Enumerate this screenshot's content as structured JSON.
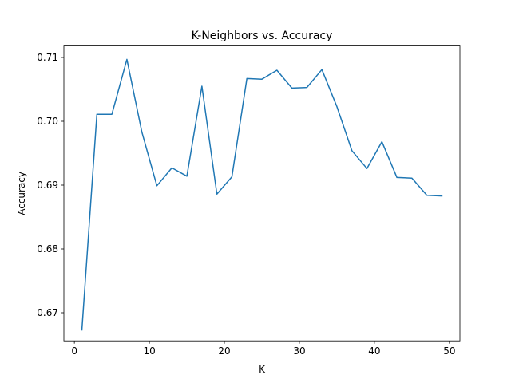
{
  "chart_data": {
    "type": "line",
    "title": "K-Neighbors vs. Accuracy",
    "xlabel": "K",
    "ylabel": "Accuracy",
    "xlim": [
      -1.4,
      51.4
    ],
    "ylim": [
      0.6656,
      0.7118
    ],
    "x_ticks": [
      0,
      10,
      20,
      30,
      40,
      50
    ],
    "x_tick_labels": [
      "0",
      "10",
      "20",
      "30",
      "40",
      "50"
    ],
    "y_ticks": [
      0.67,
      0.68,
      0.69,
      0.7,
      0.71
    ],
    "y_tick_labels": [
      "0.67",
      "0.68",
      "0.69",
      "0.70",
      "0.71"
    ],
    "grid": false,
    "legend": "none",
    "series": [
      {
        "color": "#1f77b4",
        "x": [
          1,
          3,
          5,
          7,
          9,
          11,
          13,
          15,
          17,
          19,
          21,
          23,
          25,
          27,
          29,
          31,
          33,
          35,
          37,
          39,
          41,
          43,
          45,
          47,
          49
        ],
        "values": [
          0.6673,
          0.7011,
          0.7011,
          0.7097,
          0.6983,
          0.6899,
          0.6927,
          0.6914,
          0.7055,
          0.6886,
          0.6913,
          0.7067,
          0.7066,
          0.708,
          0.7052,
          0.7053,
          0.7081,
          0.7023,
          0.6954,
          0.6926,
          0.6968,
          0.6912,
          0.6911,
          0.6884,
          0.6883
        ]
      }
    ]
  }
}
